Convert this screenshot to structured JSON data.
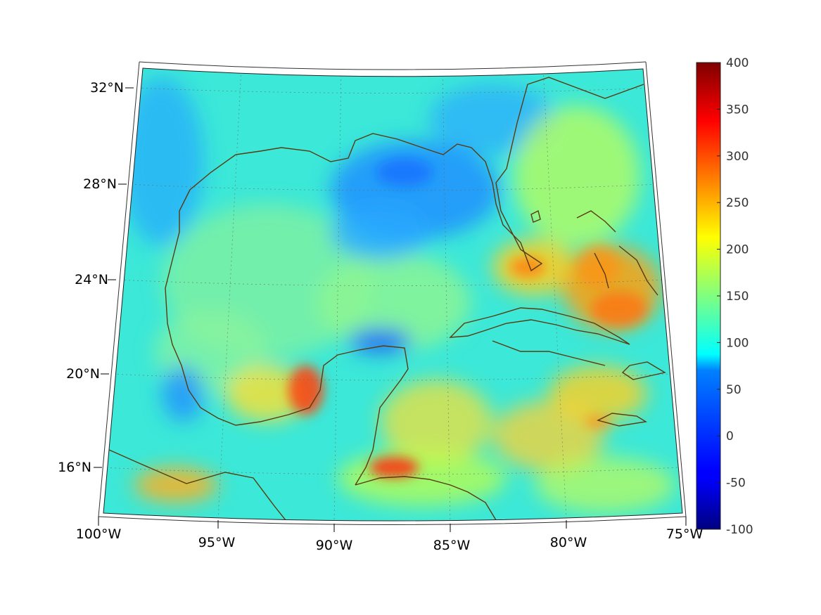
{
  "map": {
    "lon_labels": [
      "100°W",
      "95°W",
      "90°W",
      "85°W",
      "80°W",
      "75°W"
    ],
    "lat_labels": [
      "32°N",
      "28°N",
      "24°N",
      "20°N",
      "16°N"
    ],
    "extent": {
      "lon": [
        -100,
        -75
      ],
      "lat": [
        14,
        33
      ]
    },
    "grid": true,
    "coastline_color": "#5a3a10"
  },
  "colorbar": {
    "ticks": [
      "400",
      "350",
      "300",
      "250",
      "200",
      "150",
      "100",
      "50",
      "0",
      "-50",
      "-100"
    ],
    "range": [
      -100,
      400
    ],
    "colormap": "jet"
  }
}
